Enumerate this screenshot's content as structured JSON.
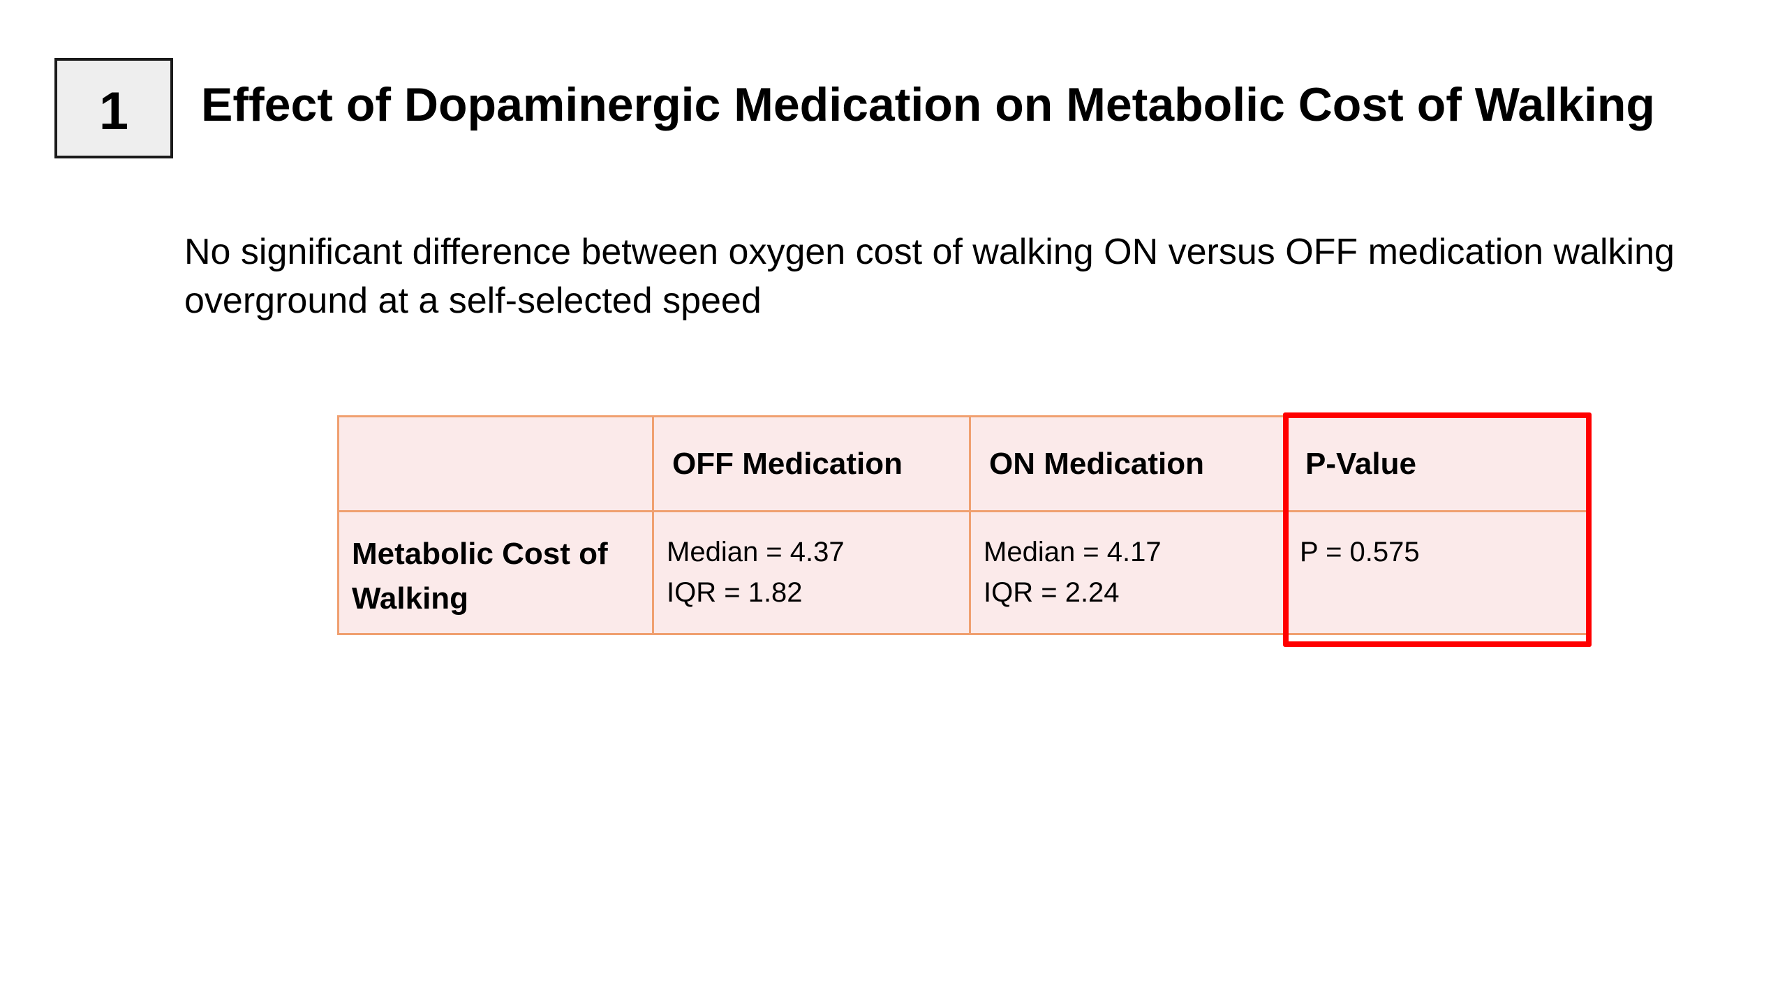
{
  "slide": {
    "number": "1",
    "title": "Effect of Dopaminergic Medication on Metabolic Cost of Walking",
    "summary": "No significant difference between oxygen cost of walking ON versus OFF medication walking overground at a self-selected speed"
  },
  "table": {
    "headers": [
      "",
      "OFF Medication",
      "ON Medication",
      "P-Value"
    ],
    "row": {
      "label_line1": "Metabolic Cost of",
      "label_line2": "Walking",
      "off": {
        "median": "Median = 4.37",
        "iqr": "IQR = 1.82"
      },
      "on": {
        "median": "Median = 4.17",
        "iqr": "IQR = 2.24"
      },
      "p_value": "P = 0.575"
    }
  },
  "colors": {
    "table_fill": "#fbeaea",
    "table_border": "#f0a070",
    "highlight": "#ff0000",
    "number_box_fill": "#eeeeee"
  }
}
